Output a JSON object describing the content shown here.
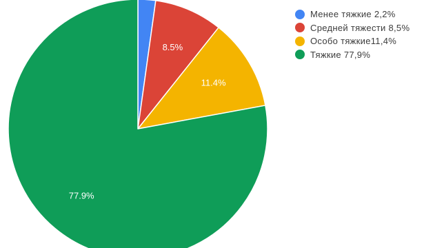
{
  "chart_data": {
    "type": "pie",
    "start_angle_deg": 0,
    "direction": "clockwise",
    "legend_position": "top-right",
    "slices": [
      {
        "label": "Менее тяжкие 2,2%",
        "value": 2.2,
        "data_label": "",
        "color": "#4285f4"
      },
      {
        "label": "Средней тяжести 8,5%",
        "value": 8.5,
        "data_label": "8.5%",
        "color": "#db4437"
      },
      {
        "label": "Особо тяжкие11,4%",
        "value": 11.4,
        "data_label": "11.4%",
        "color": "#f4b400"
      },
      {
        "label": "Тяжкие 77,9%",
        "value": 77.9,
        "data_label": "77.9%",
        "color": "#0f9d58"
      }
    ]
  }
}
